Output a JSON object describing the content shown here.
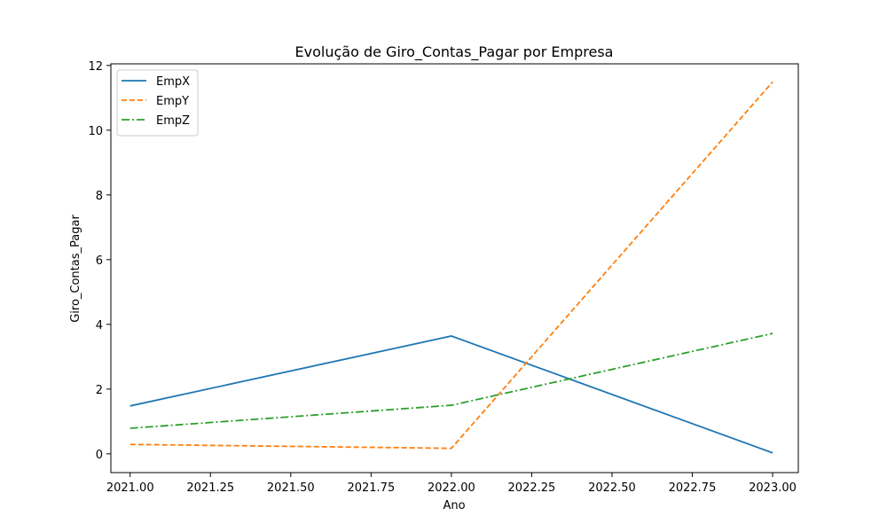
{
  "chart_data": {
    "type": "line",
    "title": "Evolução de Giro_Contas_Pagar por Empresa",
    "xlabel": "Ano",
    "ylabel": "Giro_Contas_Pagar",
    "xlim": [
      2020.94,
      2023.08
    ],
    "ylim": [
      -0.58,
      12.05
    ],
    "xticks": [
      2021.0,
      2021.25,
      2021.5,
      2021.75,
      2022.0,
      2022.25,
      2022.5,
      2022.75,
      2023.0
    ],
    "xtick_labels": [
      "2021.00",
      "2021.25",
      "2021.50",
      "2021.75",
      "2022.00",
      "2022.25",
      "2022.50",
      "2022.75",
      "2023.00"
    ],
    "yticks": [
      0,
      2,
      4,
      6,
      8,
      10,
      12
    ],
    "ytick_labels": [
      "0",
      "2",
      "4",
      "6",
      "8",
      "10",
      "12"
    ],
    "grid": false,
    "legend_position": "top-left",
    "x": [
      2021,
      2022,
      2023
    ],
    "series": [
      {
        "name": "EmpX",
        "values": [
          1.48,
          3.64,
          0.03
        ],
        "color": "#1f77b4",
        "dash": "solid"
      },
      {
        "name": "EmpY",
        "values": [
          0.29,
          0.17,
          11.49
        ],
        "color": "#ff7f0e",
        "dash": "dashed"
      },
      {
        "name": "EmpZ",
        "values": [
          0.79,
          1.5,
          3.72
        ],
        "color": "#2ca02c",
        "dash": "dashdot"
      }
    ]
  }
}
